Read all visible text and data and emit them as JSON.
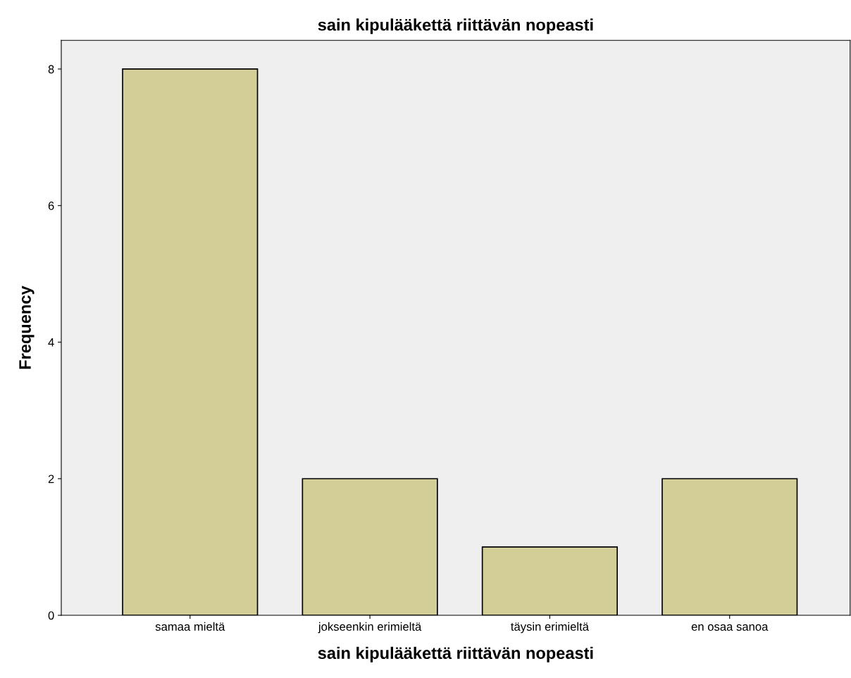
{
  "chart_data": {
    "type": "bar",
    "title": "sain kipulääkettä riittävän nopeasti",
    "xlabel": "sain kipulääkettä riittävän nopeasti",
    "ylabel": "Frequency",
    "categories": [
      "samaa mieltä",
      "jokseenkin erimieltä",
      "täysin erimieltä",
      "en osaa sanoa"
    ],
    "values": [
      8,
      2,
      1,
      2
    ],
    "color": "#d3ce97",
    "ylim": [
      0,
      8.42
    ],
    "yticks": [
      0,
      2,
      4,
      6,
      8
    ],
    "grid": false,
    "legend": false
  }
}
